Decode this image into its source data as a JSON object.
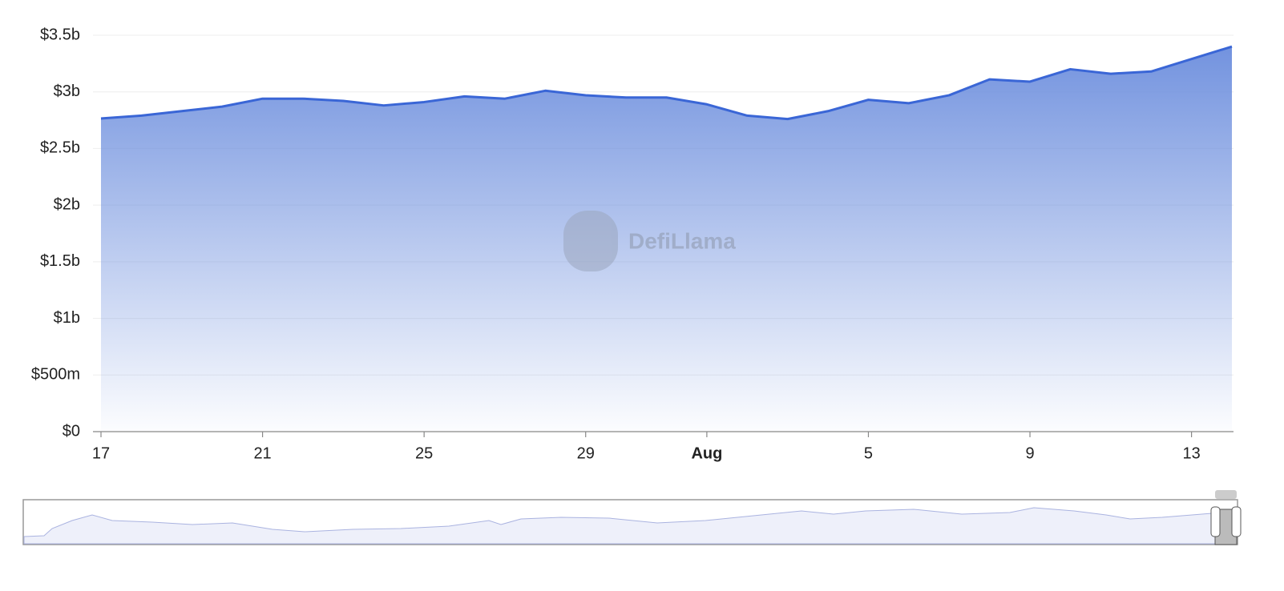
{
  "chart_data": {
    "type": "area",
    "watermark": "DefiLlama",
    "categories": [
      "17",
      null,
      null,
      null,
      "21",
      null,
      null,
      null,
      "25",
      null,
      null,
      null,
      "29",
      null,
      null,
      "Aug",
      null,
      null,
      null,
      "5",
      null,
      null,
      null,
      "9",
      null,
      null,
      null,
      "13",
      null
    ],
    "series": [
      {
        "color": "#3a66d6",
        "values": [
          2.765,
          2.79,
          2.83,
          2.87,
          2.94,
          2.94,
          2.92,
          2.88,
          2.91,
          2.96,
          2.94,
          3.01,
          2.97,
          2.95,
          2.95,
          2.89,
          2.79,
          2.76,
          2.83,
          2.93,
          2.9,
          2.97,
          3.11,
          3.09,
          3.2,
          3.16,
          3.18,
          3.29,
          3.4
        ]
      }
    ],
    "ylim": [
      0,
      3.5
    ],
    "yticks": [
      {
        "value": 0,
        "label": "$0"
      },
      {
        "value": 0.5,
        "label": "$500m"
      },
      {
        "value": 1,
        "label": "$1b"
      },
      {
        "value": 1.5,
        "label": "$1.5b"
      },
      {
        "value": 2,
        "label": "$2b"
      },
      {
        "value": 2.5,
        "label": "$2.5b"
      },
      {
        "value": 3,
        "label": "$3b"
      },
      {
        "value": 3.5,
        "label": "$3.5b"
      }
    ],
    "grid": true
  }
}
